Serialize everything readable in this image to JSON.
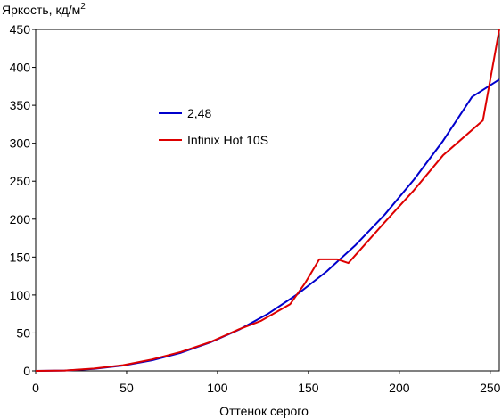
{
  "chart_data": {
    "type": "line",
    "title": "",
    "ylabel": "Яркость, кд/м",
    "ylabel_superscript": "2",
    "xlabel": "Оттенок серого",
    "xlim": [
      0,
      255
    ],
    "ylim": [
      0,
      450
    ],
    "xticks": [
      0,
      50,
      100,
      150,
      200,
      250
    ],
    "yticks": [
      0,
      50,
      100,
      150,
      200,
      250,
      300,
      350,
      400,
      450
    ],
    "grid": false,
    "legend_position": "upper-left inside",
    "series": [
      {
        "name": "2,48",
        "color": "#0000cc",
        "x": [
          0,
          16,
          32,
          48,
          64,
          80,
          96,
          112,
          128,
          144,
          160,
          176,
          192,
          208,
          224,
          240,
          255
        ],
        "y": [
          0,
          0.5,
          2.6,
          7.0,
          14.0,
          24.0,
          37.5,
          54.5,
          75.5,
          101,
          131,
          166,
          206,
          252,
          303,
          361,
          384
        ]
      },
      {
        "name": "Infinix Hot 10S",
        "color": "#dd0000",
        "x": [
          0,
          16,
          32,
          48,
          64,
          80,
          96,
          112,
          124,
          140,
          148,
          156,
          166,
          172,
          192,
          208,
          224,
          246,
          255
        ],
        "y": [
          0,
          0.5,
          3.0,
          7.5,
          15.0,
          25.0,
          38.0,
          55.0,
          66.0,
          88,
          115,
          147,
          147,
          142,
          196,
          238,
          284,
          330,
          450
        ]
      }
    ]
  }
}
